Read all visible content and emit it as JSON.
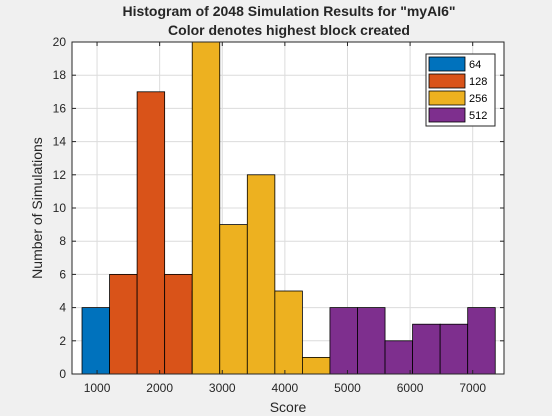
{
  "chart_data": {
    "type": "bar",
    "title": "Histogram of 2048 Simulation Results for \"myAI6\"",
    "subtitle": "Color denotes highest block created",
    "xlabel": "Score",
    "ylabel": "Number of Simulations",
    "xlim": [
      600,
      7500
    ],
    "ylim": [
      0,
      20
    ],
    "xticks": [
      1000,
      2000,
      3000,
      4000,
      5000,
      6000,
      7000
    ],
    "yticks": [
      0,
      2,
      4,
      6,
      8,
      10,
      12,
      14,
      16,
      18,
      20
    ],
    "grid": true,
    "bin_width": 440,
    "legend_position": "top-right",
    "series": [
      {
        "name": "64",
        "color": "#0072bd",
        "bins": [
          {
            "x0": 760,
            "count": 4
          }
        ]
      },
      {
        "name": "128",
        "color": "#d95319",
        "bins": [
          {
            "x0": 1200,
            "count": 6
          },
          {
            "x0": 1640,
            "count": 17
          },
          {
            "x0": 2080,
            "count": 6
          },
          {
            "x0": 2520,
            "count": 5
          }
        ]
      },
      {
        "name": "256",
        "color": "#edb120",
        "bins": [
          {
            "x0": 2520,
            "count": 20
          },
          {
            "x0": 2960,
            "count": 9
          },
          {
            "x0": 3400,
            "count": 12
          },
          {
            "x0": 3840,
            "count": 5
          },
          {
            "x0": 4280,
            "count": 1
          },
          {
            "x0": 5160,
            "count": 1
          }
        ]
      },
      {
        "name": "512",
        "color": "#7e2f8e",
        "bins": [
          {
            "x0": 4720,
            "count": 4
          },
          {
            "x0": 5160,
            "count": 4
          },
          {
            "x0": 5600,
            "count": 2
          },
          {
            "x0": 6040,
            "count": 3
          },
          {
            "x0": 6480,
            "count": 3
          },
          {
            "x0": 6920,
            "count": 4
          }
        ]
      }
    ]
  }
}
